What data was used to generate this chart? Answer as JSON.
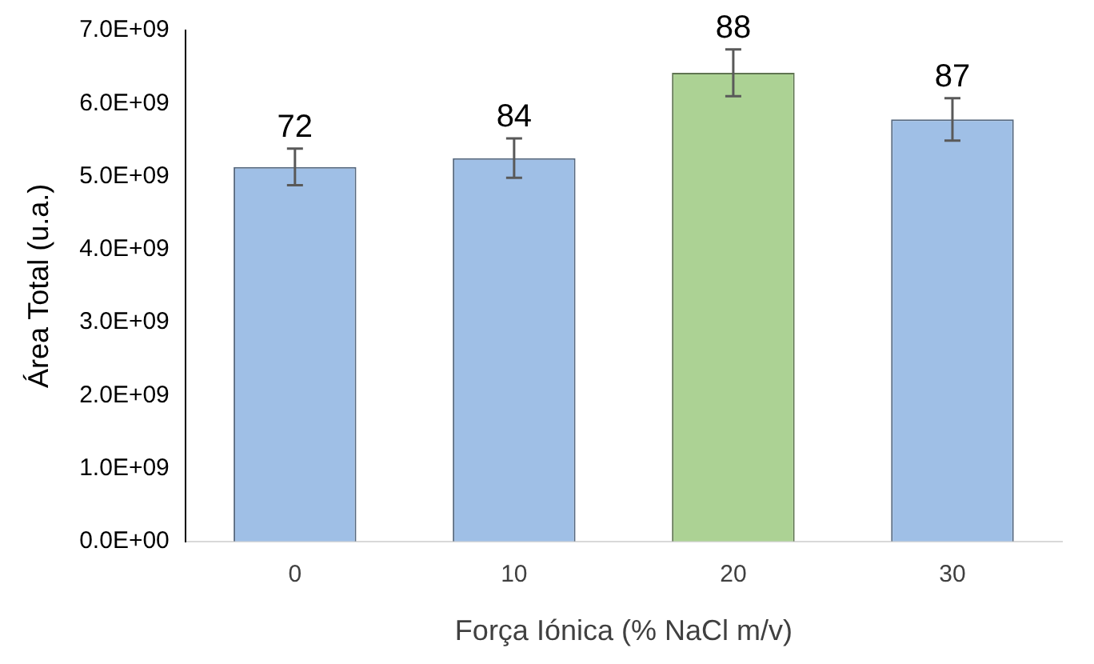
{
  "chart_data": {
    "type": "bar",
    "xlabel": "Força Iónica (% NaCl m/v)",
    "ylabel": "Área Total (u.a.)",
    "categories": [
      "0",
      "10",
      "20",
      "30"
    ],
    "values": [
      5130000000.0,
      5250000000.0,
      6420000000.0,
      5780000000.0
    ],
    "errors": [
      250000000.0,
      270000000.0,
      320000000.0,
      290000000.0
    ],
    "colors": [
      "#9fbfe6",
      "#9fbfe6",
      "#acd294",
      "#9fbfe6"
    ],
    "annotations": [
      {
        "text": "72",
        "x": "0",
        "y": 5130000000.0
      },
      {
        "text": "84",
        "x": "10",
        "y": 5250000000.0
      },
      {
        "text": "88",
        "x": "20",
        "y": 6420000000.0
      },
      {
        "text": "87",
        "x": "30",
        "y": 5780000000.0
      }
    ],
    "ylim": [
      0,
      7000000000.0
    ],
    "yticks": [
      {
        "value": 0,
        "label": "0.0E+00"
      },
      {
        "value": 1000000000.0,
        "label": "1.0E+09"
      },
      {
        "value": 2000000000.0,
        "label": "2.0E+09"
      },
      {
        "value": 3000000000.0,
        "label": "3.0E+09"
      },
      {
        "value": 4000000000.0,
        "label": "4.0E+09"
      },
      {
        "value": 5000000000.0,
        "label": "5.0E+09"
      },
      {
        "value": 6000000000.0,
        "label": "6.0E+09"
      },
      {
        "value": 7000000000.0,
        "label": "7.0E+09"
      }
    ],
    "grid": false,
    "legend": false
  }
}
